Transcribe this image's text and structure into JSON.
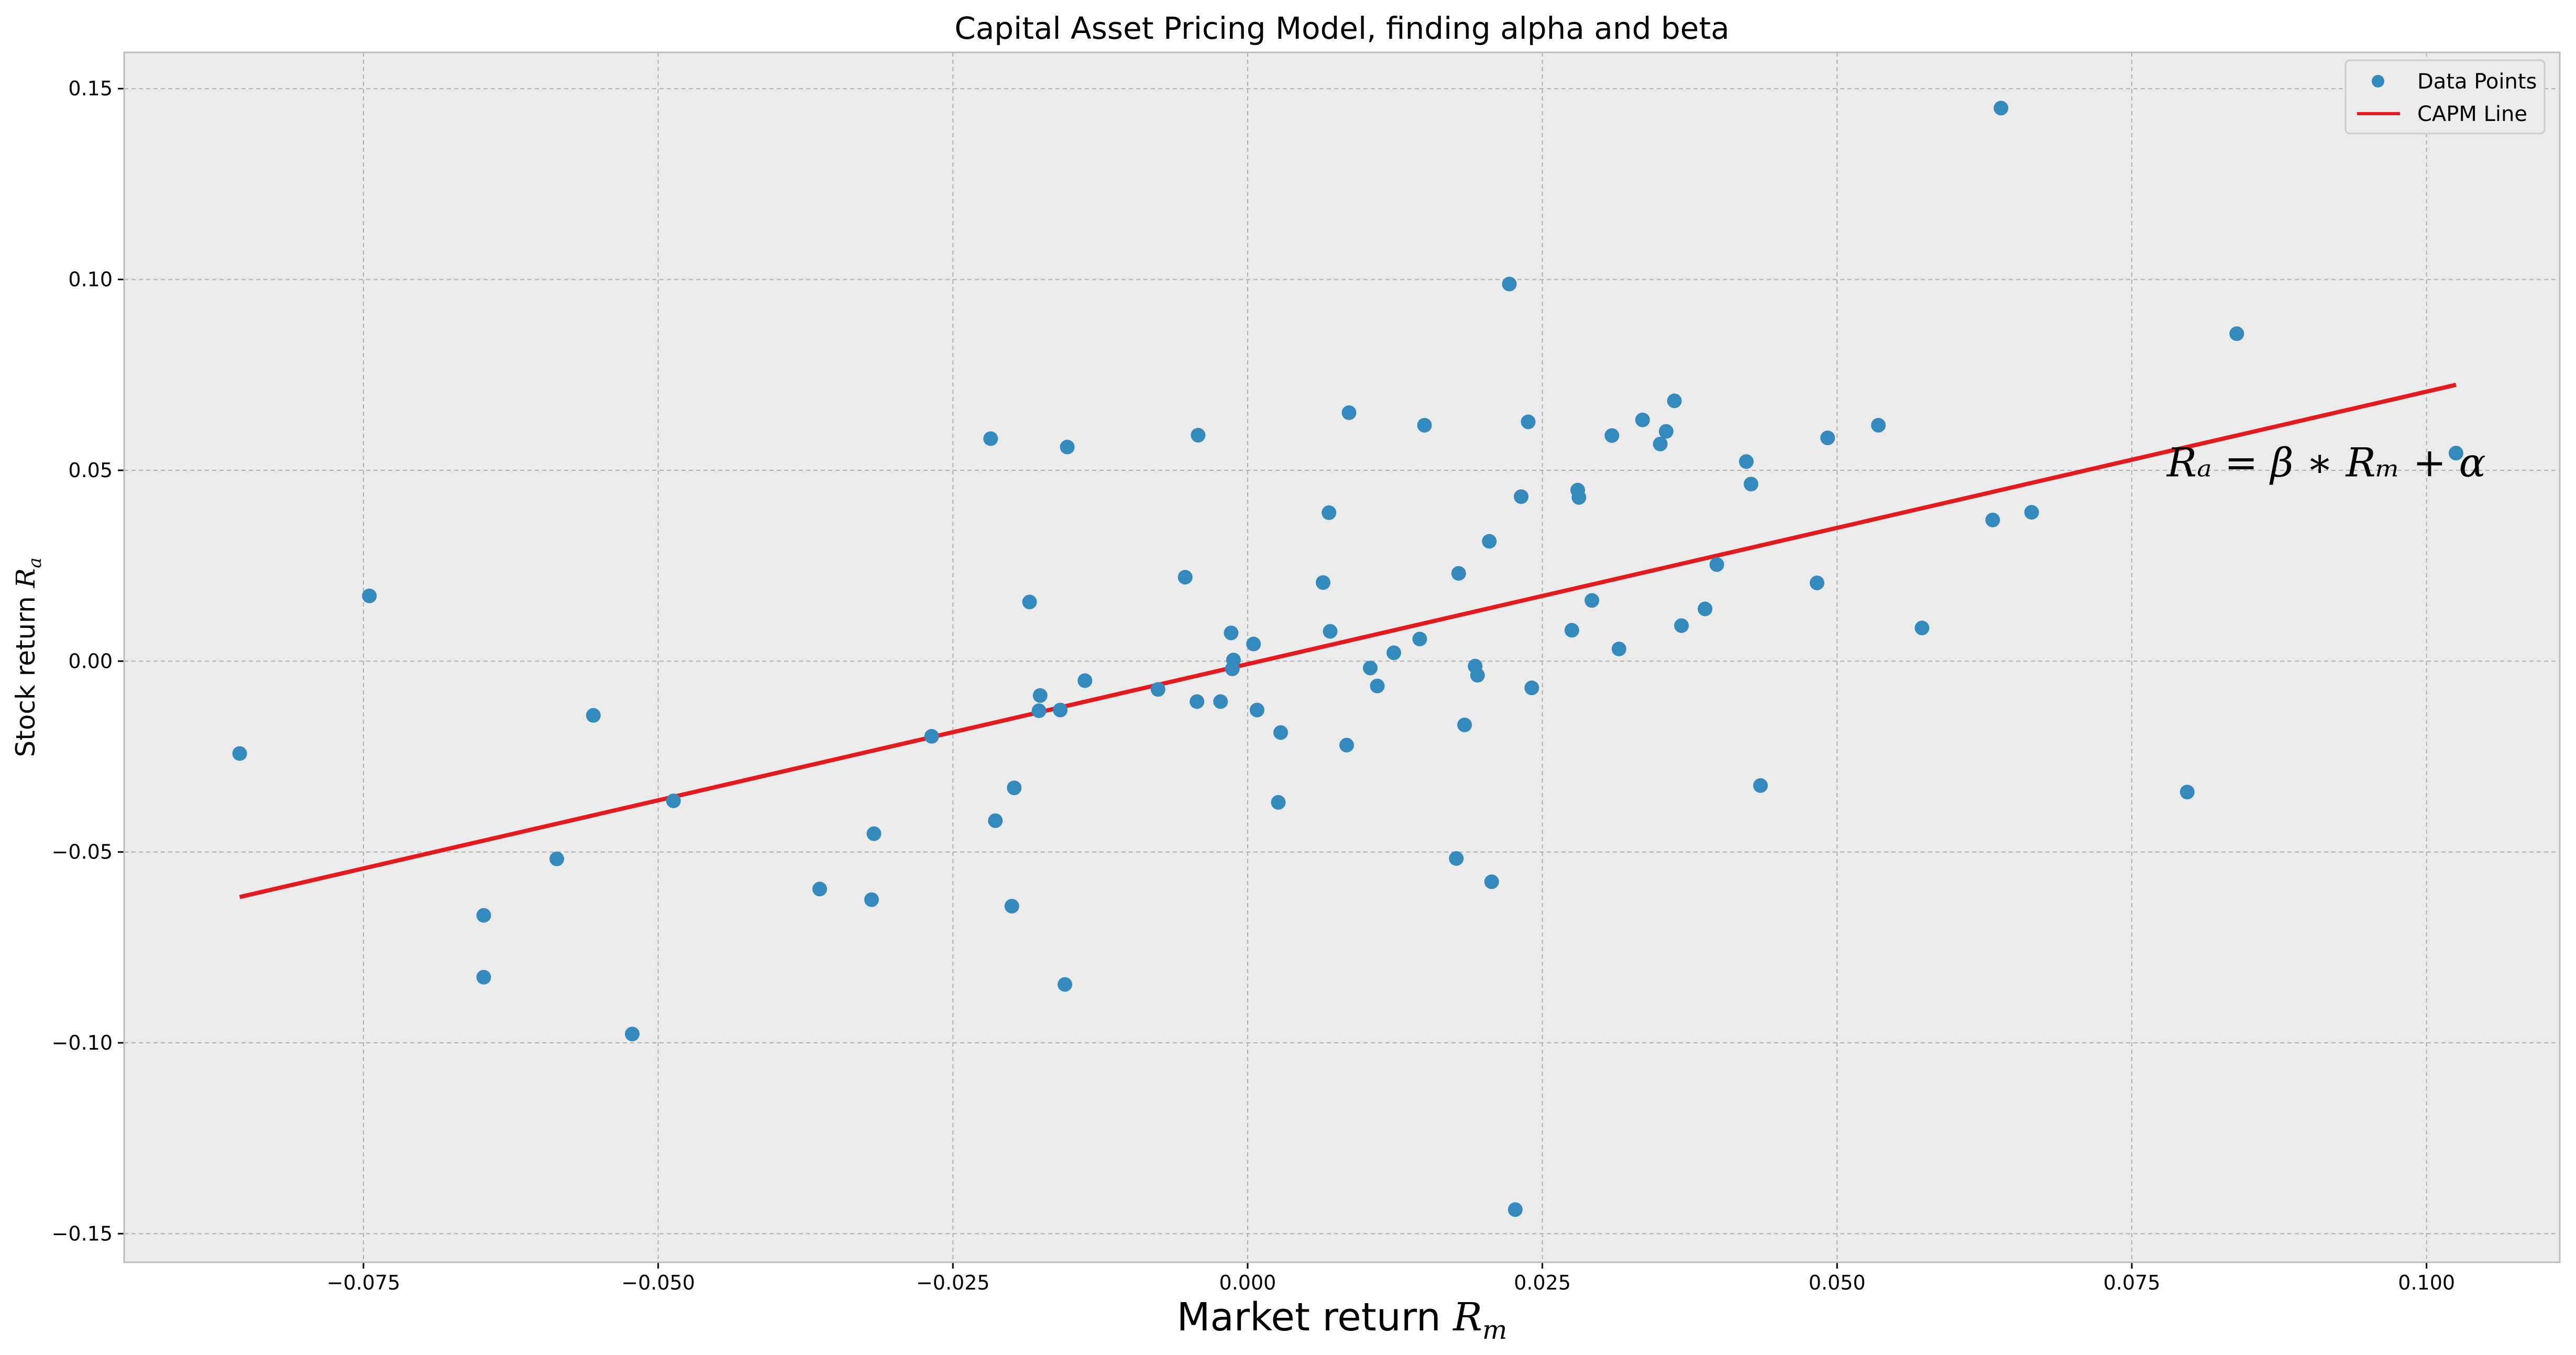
{
  "colors": {
    "background": "#ffffff",
    "plot_background": "#ebebeb",
    "grid": "#b0b0b0",
    "points": "#348abd",
    "line": "#e41a1c",
    "axes": "#bcbcbc"
  },
  "chart_data": {
    "type": "scatter",
    "title": "Capital Asset Pricing Model, finding alpha and beta",
    "xlabel": "Market return",
    "xlabel_math": "R",
    "xlabel_sub": "m",
    "ylabel": "Stock return",
    "ylabel_math": "R",
    "ylabel_sub": "a",
    "xlim": [
      -0.0953,
      0.1113
    ],
    "ylim": [
      -0.1575,
      0.1595
    ],
    "xticks": [
      -0.075,
      -0.05,
      -0.025,
      0.0,
      0.025,
      0.05,
      0.075,
      0.1
    ],
    "xtick_labels": [
      "−0.075",
      "−0.050",
      "−0.025",
      "0.000",
      "0.025",
      "0.050",
      "0.075",
      "0.100"
    ],
    "yticks": [
      -0.15,
      -0.1,
      -0.05,
      0.0,
      0.05,
      0.1,
      0.15
    ],
    "ytick_labels": [
      "−0.15",
      "−0.10",
      "−0.05",
      "0.00",
      "0.05",
      "0.10",
      "0.15"
    ],
    "grid": true,
    "legend": {
      "location": "top-right",
      "entries": [
        {
          "label": "Data Points",
          "kind": "marker"
        },
        {
          "label": "CAPM Line",
          "kind": "line"
        }
      ]
    },
    "annotation": {
      "text": "Rₐ = β ∗ Rₘ + α",
      "x": 0.0915,
      "y": 0.052
    },
    "series": [
      {
        "name": "Data Points",
        "kind": "scatter",
        "x": [
          -0.0855,
          -0.0745,
          -0.0648,
          -0.0648,
          -0.0586,
          -0.0555,
          -0.0522,
          -0.0487,
          -0.0363,
          -0.0319,
          -0.0317,
          -0.0268,
          -0.0218,
          -0.0214,
          -0.02,
          -0.0198,
          -0.0185,
          -0.0177,
          -0.0176,
          -0.0159,
          -0.0155,
          -0.0153,
          -0.0138,
          -0.0076,
          -0.0053,
          -0.0043,
          -0.0042,
          -0.0023,
          -0.0014,
          -0.0013,
          -0.0012,
          0.0005,
          0.0008,
          0.0026,
          0.0028,
          0.0064,
          0.0069,
          0.007,
          0.0084,
          0.0086,
          0.0104,
          0.011,
          0.0124,
          0.0146,
          0.015,
          0.0177,
          0.0179,
          0.0184,
          0.0193,
          0.0195,
          0.0205,
          0.0207,
          0.0222,
          0.0227,
          0.0232,
          0.0238,
          0.0241,
          0.0275,
          0.028,
          0.0281,
          0.0292,
          0.0309,
          0.0315,
          0.0335,
          0.035,
          0.0355,
          0.0362,
          0.0368,
          0.0388,
          0.0398,
          0.0423,
          0.0427,
          0.0435,
          0.0483,
          0.0492,
          0.0535,
          0.0572,
          0.0632,
          0.0639,
          0.0665,
          0.0797,
          0.0839,
          0.1025
        ],
        "y": [
          -0.0242,
          0.0171,
          -0.0828,
          -0.0666,
          -0.0518,
          -0.0142,
          -0.0977,
          -0.0366,
          -0.0597,
          -0.0625,
          -0.0452,
          -0.0197,
          0.0583,
          -0.0418,
          -0.0642,
          -0.0332,
          0.0155,
          -0.013,
          -0.009,
          -0.0128,
          -0.0847,
          0.0561,
          -0.0051,
          -0.0074,
          0.022,
          -0.0106,
          0.0592,
          -0.0106,
          0.0074,
          -0.002,
          0.0003,
          0.0045,
          -0.0128,
          -0.037,
          -0.0187,
          0.0206,
          0.0389,
          0.0078,
          -0.022,
          0.0651,
          -0.0018,
          -0.0065,
          0.0022,
          0.0058,
          0.0618,
          -0.0517,
          0.023,
          -0.0167,
          -0.0013,
          -0.0037,
          0.0314,
          -0.0578,
          0.0988,
          -0.1437,
          0.0431,
          0.0627,
          -0.007,
          0.0081,
          0.0448,
          0.0429,
          0.0159,
          0.0591,
          0.0032,
          0.0632,
          0.0569,
          0.0602,
          0.0682,
          0.0093,
          0.0137,
          0.0253,
          0.0523,
          0.0464,
          -0.0326,
          0.0205,
          0.0585,
          0.0618,
          0.0087,
          0.037,
          0.1449,
          0.039,
          -0.0343,
          0.0858,
          0.0545
        ]
      },
      {
        "name": "CAPM Line",
        "kind": "line",
        "x": [
          -0.0855,
          0.1025
        ],
        "y": [
          -0.0618,
          0.0724
        ]
      }
    ]
  }
}
